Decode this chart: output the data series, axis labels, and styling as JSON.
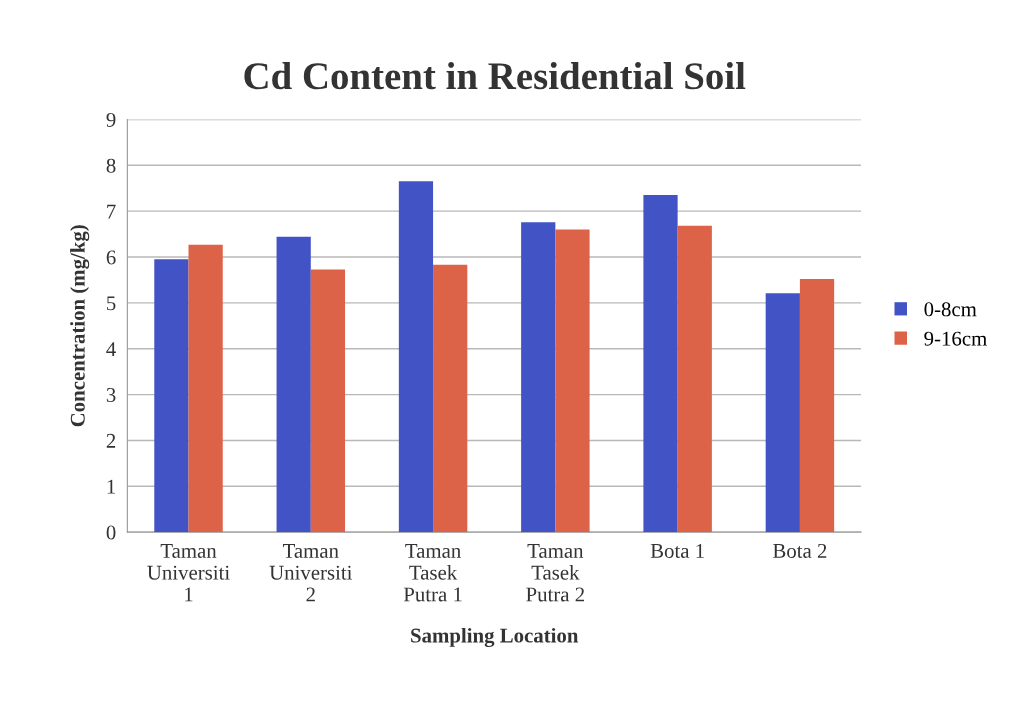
{
  "chart_data": {
    "type": "bar",
    "title": "Cd Content in Residential Soil",
    "xlabel": "Sampling Location",
    "ylabel": "Concentration (mg/kg)",
    "categories": [
      "Taman\nUniversiti\n1",
      "Taman\nUniversiti\n2",
      "Taman\nTasek\nPutra 1",
      "Taman\nTasek\nPutra 2",
      "Bota 1",
      "Bota 2"
    ],
    "series": [
      {
        "name": "0-8cm",
        "color": "#4253c6",
        "values": [
          5.95,
          6.44,
          7.65,
          6.76,
          7.35,
          5.21
        ]
      },
      {
        "name": "9-16cm",
        "color": "#dc6248",
        "values": [
          6.27,
          5.73,
          5.83,
          6.6,
          6.68,
          5.52
        ]
      }
    ],
    "ylim": [
      0,
      9
    ],
    "yticks": [
      0,
      1,
      2,
      3,
      4,
      5,
      6,
      7,
      8,
      9
    ],
    "grid": "y",
    "legend": "right"
  }
}
